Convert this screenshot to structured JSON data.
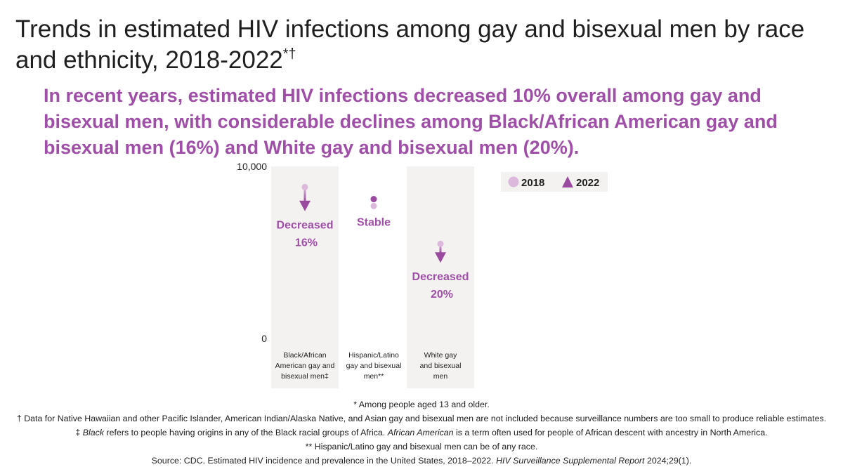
{
  "title": {
    "text": "Trends in estimated HIV infections among gay and bisexual men by race and ethnicity, 2018-2022",
    "marks": "*†"
  },
  "subtitle": "In recent years, estimated HIV infections decreased 10% overall among gay and bisexual men, with considerable declines among Black/African American gay and bisexual men (16%) and White gay and bisexual men (20%).",
  "colors": {
    "year_2018": "#dcb8dc",
    "year_2022": "#9b4b9f",
    "label": "#a04fa8",
    "column_shade": "#f3f2f0"
  },
  "chart_data": {
    "type": "scatter",
    "title": "",
    "ylim": [
      0,
      10000
    ],
    "y_tick_labels": [
      "10,000",
      "0"
    ],
    "categories": [
      [
        "Black/African",
        "American gay and",
        "bisexual men‡"
      ],
      [
        "Hispanic/Latino",
        "gay and bisexual",
        "men**"
      ],
      [
        "White gay",
        "and bisexual",
        "men"
      ]
    ],
    "series": [
      {
        "name": "2018",
        "marker": "circle",
        "values": [
          8800,
          7700,
          5500
        ]
      },
      {
        "name": "2022",
        "marker": "triangle",
        "values": [
          7400,
          8100,
          4400
        ]
      }
    ],
    "annotations": [
      [
        "Decreased",
        "16%"
      ],
      [
        "Stable"
      ],
      [
        "Decreased",
        "20%"
      ]
    ],
    "legend_position": "top-right"
  },
  "footnotes": [
    "* Among people aged 13 and older.",
    "† Data for Native Hawaiian and other Pacific Islander, American Indian/Alaska Native, and Asian gay and bisexual men are not included because surveillance numbers are too small to produce reliable estimates."
  ],
  "footnote_black": {
    "prefix": "‡ ",
    "term1": "Black",
    "mid": " refers to people having origins in any of the Black racial groups of Africa. ",
    "term2": "African American",
    "suffix": " is a term often used for people of African descent with ancestry in North America."
  },
  "footnote_hispanic": "** Hispanic/Latino gay and bisexual men can be of any race.",
  "source": {
    "prefix": "Source: CDC. Estimated HIV incidence and prevalence in the United States, 2018–2022. ",
    "journal": "HIV Surveillance Supplemental Report",
    "suffix": " 2024;29(1)."
  }
}
